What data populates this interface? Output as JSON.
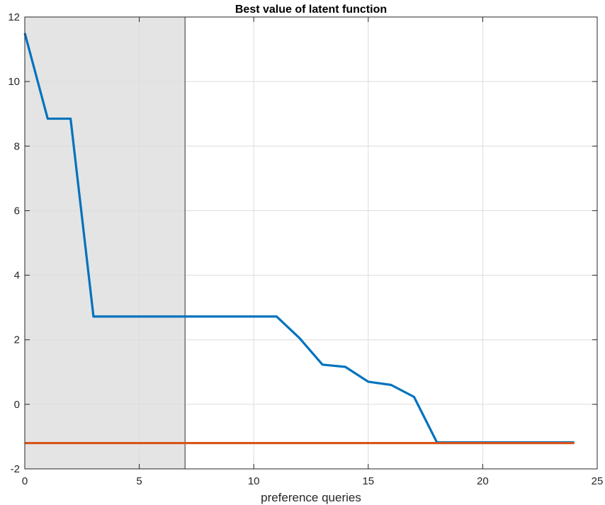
{
  "chart_data": {
    "type": "line",
    "title": "Best value of latent function",
    "xlabel": "preference queries",
    "ylabel": "",
    "xlim": [
      0,
      25
    ],
    "ylim": [
      -2,
      12
    ],
    "xticks": [
      "0",
      "5",
      "10",
      "15",
      "20",
      "25"
    ],
    "yticks": [
      "-2",
      "0",
      "2",
      "4",
      "6",
      "8",
      "10",
      "12"
    ],
    "grid": true,
    "shaded_region": {
      "x_from": 0,
      "x_to": 7,
      "color": "#e4e4e4"
    },
    "vertical_line_x": 7,
    "series": [
      {
        "color": "#0072BD",
        "x": [
          0,
          1,
          2,
          3,
          4,
          5,
          6,
          7,
          8,
          9,
          10,
          11,
          12,
          13,
          14,
          15,
          16,
          17,
          18,
          19,
          20,
          21,
          22,
          23,
          24
        ],
        "y": [
          11.5,
          8.85,
          8.85,
          2.72,
          2.72,
          2.72,
          2.72,
          2.72,
          2.72,
          2.72,
          2.72,
          2.72,
          2.05,
          1.23,
          1.16,
          0.7,
          0.6,
          0.23,
          -1.18,
          -1.18,
          -1.18,
          -1.18,
          -1.18,
          -1.18,
          -1.18
        ]
      },
      {
        "color": "#D95319",
        "x": [
          0,
          24
        ],
        "y": [
          -1.2,
          -1.2
        ]
      }
    ]
  }
}
